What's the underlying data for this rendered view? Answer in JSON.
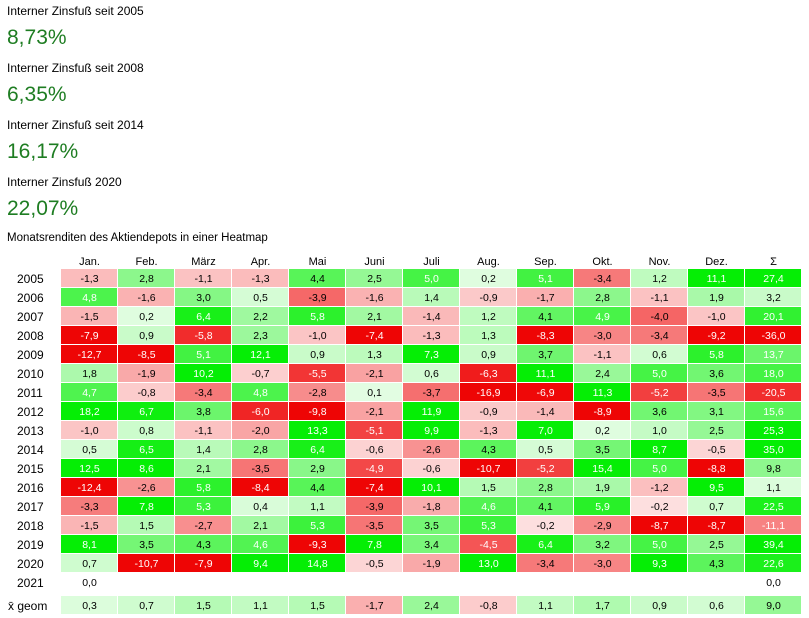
{
  "stats": [
    {
      "label": "Interner Zinsfuß seit 2005",
      "value": "8,73%"
    },
    {
      "label": "Interner Zinsfuß seit 2008",
      "value": "6,35%"
    },
    {
      "label": "Interner Zinsfuß seit 2014",
      "value": "16,17%"
    },
    {
      "label": "Interner Zinsfuß 2020",
      "value": "22,07%"
    }
  ],
  "heatmap_caption": "Monatsrenditen des Aktiendepots in einer Heatmap",
  "colors": {
    "positive": "#00ee00",
    "negative": "#ee0000",
    "neutral": "#ffffff",
    "accent_text": "#1e7d22"
  },
  "chart_data": {
    "type": "heatmap",
    "title": "Monatsrenditen des Aktiendepots in einer Heatmap",
    "columns": [
      "Jan.",
      "Feb.",
      "März",
      "Apr.",
      "Mai",
      "Juni",
      "Juli",
      "Aug.",
      "Sep.",
      "Okt.",
      "Nov.",
      "Dez.",
      "Σ"
    ],
    "rows": [
      {
        "label": "2005",
        "values": [
          "-1,3",
          "2,8",
          "-1,1",
          "-1,3",
          "4,4",
          "2,5",
          "5,0",
          "0,2",
          "5,1",
          "-3,4",
          "1,2",
          "11,1",
          "27,4"
        ]
      },
      {
        "label": "2006",
        "values": [
          "4,8",
          "-1,6",
          "3,0",
          "0,5",
          "-3,9",
          "-1,6",
          "1,4",
          "-0,9",
          "-1,7",
          "2,8",
          "-1,1",
          "1,9",
          "3,2"
        ]
      },
      {
        "label": "2007",
        "values": [
          "-1,5",
          "0,2",
          "6,4",
          "2,2",
          "5,8",
          "2,1",
          "-1,4",
          "1,2",
          "4,1",
          "4,9",
          "-4,0",
          "-1,0",
          "20,1"
        ]
      },
      {
        "label": "2008",
        "values": [
          "-7,9",
          "0,9",
          "-5,8",
          "2,3",
          "-1,0",
          "-7,4",
          "-1,3",
          "1,3",
          "-8,3",
          "-3,0",
          "-3,4",
          "-9,2",
          "-36,0"
        ]
      },
      {
        "label": "2009",
        "values": [
          "-12,7",
          "-8,5",
          "5,1",
          "12,1",
          "0,9",
          "1,3",
          "7,3",
          "0,9",
          "3,7",
          "-1,1",
          "0,6",
          "5,8",
          "13,7"
        ]
      },
      {
        "label": "2010",
        "values": [
          "1,8",
          "-1,9",
          "10,2",
          "-0,7",
          "-5,5",
          "-2,1",
          "0,6",
          "-6,3",
          "11,1",
          "2,4",
          "5,0",
          "3,6",
          "18,0"
        ]
      },
      {
        "label": "2011",
        "values": [
          "4,7",
          "-0,8",
          "-3,4",
          "4,8",
          "-2,8",
          "0,1",
          "-3,7",
          "-16,9",
          "-6,9",
          "11,3",
          "-5,2",
          "-3,5",
          "-20,5"
        ]
      },
      {
        "label": "2012",
        "values": [
          "18,2",
          "6,7",
          "3,8",
          "-6,0",
          "-9,8",
          "-2,1",
          "11,9",
          "-0,9",
          "-1,4",
          "-8,9",
          "3,6",
          "3,1",
          "15,6"
        ]
      },
      {
        "label": "2013",
        "values": [
          "-1,0",
          "0,8",
          "-1,1",
          "-2,0",
          "13,3",
          "-5,1",
          "9,9",
          "-1,3",
          "7,0",
          "0,2",
          "1,0",
          "2,5",
          "25,3"
        ]
      },
      {
        "label": "2014",
        "values": [
          "0,5",
          "6,5",
          "1,4",
          "2,8",
          "6,4",
          "-0,6",
          "-2,6",
          "4,3",
          "0,5",
          "3,5",
          "8,7",
          "-0,5",
          "35,0"
        ]
      },
      {
        "label": "2015",
        "values": [
          "12,5",
          "8,6",
          "2,1",
          "-3,5",
          "2,9",
          "-4,9",
          "-0,6",
          "-10,7",
          "-5,2",
          "15,4",
          "5,0",
          "-8,8",
          "9,8"
        ]
      },
      {
        "label": "2016",
        "values": [
          "-12,4",
          "-2,6",
          "5,8",
          "-8,4",
          "4,4",
          "-7,4",
          "10,1",
          "1,5",
          "2,8",
          "1,9",
          "-1,2",
          "9,5",
          "1,1"
        ]
      },
      {
        "label": "2017",
        "values": [
          "-3,3",
          "7,8",
          "5,3",
          "0,4",
          "1,1",
          "-3,9",
          "-1,8",
          "4,6",
          "4,1",
          "5,9",
          "-0,2",
          "0,7",
          "22,5"
        ]
      },
      {
        "label": "2018",
        "values": [
          "-1,5",
          "1,5",
          "-2,7",
          "2,1",
          "5,3",
          "-3,5",
          "3,5",
          "5,3",
          "-0,2",
          "-2,9",
          "-8,7",
          "-8,7",
          "-11,1"
        ]
      },
      {
        "label": "2019",
        "values": [
          "8,1",
          "3,5",
          "4,3",
          "4,6",
          "-9,3",
          "7,8",
          "3,4",
          "-4,5",
          "6,4",
          "3,2",
          "5,0",
          "2,5",
          "39,4"
        ]
      },
      {
        "label": "2020",
        "values": [
          "0,7",
          "-10,7",
          "-7,9",
          "9,4",
          "14,8",
          "-0,5",
          "-1,9",
          "13,0",
          "-3,4",
          "-3,0",
          "9,3",
          "4,3",
          "22,6"
        ]
      },
      {
        "label": "2021",
        "values": [
          "0,0",
          "",
          "",
          "",
          "",
          "",
          "",
          "",
          "",
          "",
          "",
          "",
          "0,0"
        ]
      },
      {
        "label": "x̄ geom",
        "values": [
          "0,3",
          "0,7",
          "1,5",
          "1,1",
          "1,5",
          "-1,7",
          "2,4",
          "-0,8",
          "1,1",
          "1,7",
          "0,9",
          "0,6",
          "9,0"
        ]
      }
    ]
  }
}
